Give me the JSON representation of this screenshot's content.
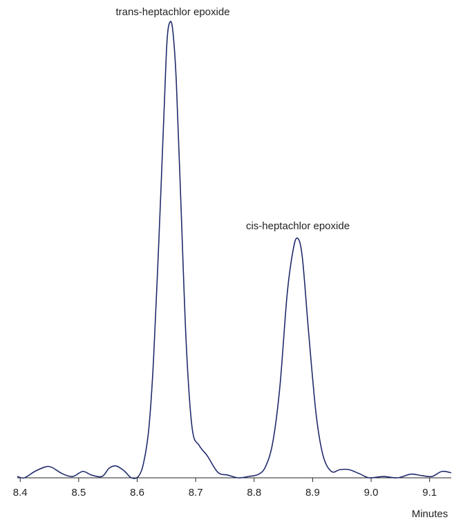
{
  "chart_data": {
    "type": "line",
    "x_label": "Minutes",
    "annotations": [
      "trans-heptachlor epoxide",
      "cis-heptachlor epoxide"
    ],
    "x": [
      8.395,
      8.407,
      8.425,
      8.443,
      8.454,
      8.472,
      8.49,
      8.507,
      8.522,
      8.54,
      8.552,
      8.564,
      8.578,
      8.59,
      8.602,
      8.611,
      8.62,
      8.628,
      8.637,
      8.646,
      8.651,
      8.656,
      8.661,
      8.667,
      8.675,
      8.684,
      8.694,
      8.706,
      8.72,
      8.738,
      8.755,
      8.773,
      8.791,
      8.808,
      8.82,
      8.832,
      8.844,
      8.856,
      8.865,
      8.873,
      8.882,
      8.893,
      8.906,
      8.918,
      8.932,
      8.947,
      8.962,
      8.98,
      8.997,
      9.021,
      9.045,
      9.068,
      9.086,
      9.104,
      9.121,
      9.137
    ],
    "series": [
      {
        "color": "#1f2a6b",
        "values": [
          0.3,
          0,
          1.4,
          2.4,
          2.3,
          0.9,
          0.3,
          1.4,
          0.6,
          0.3,
          2.1,
          2.6,
          1.5,
          0,
          0.3,
          3.3,
          10.9,
          26,
          51.8,
          80.6,
          95.8,
          100,
          98,
          86.7,
          59.4,
          29.1,
          10.9,
          7.1,
          4.8,
          1.2,
          0.6,
          0,
          0.3,
          0.8,
          2.6,
          7.9,
          20,
          39.7,
          48.8,
          52.6,
          48.8,
          32.1,
          13.9,
          4.8,
          1.4,
          1.8,
          1.8,
          0.9,
          0,
          0.3,
          0,
          0.8,
          0.5,
          0.3,
          1.4,
          1.1
        ]
      }
    ],
    "xlim": [
      8.395,
      9.137
    ],
    "xticks": [
      8.4,
      8.5,
      8.6,
      8.7,
      8.8,
      8.9,
      {
        "value": 9,
        "label": "9.0"
      },
      9.1
    ],
    "ylim": [
      0,
      100
    ],
    "grid": false
  }
}
